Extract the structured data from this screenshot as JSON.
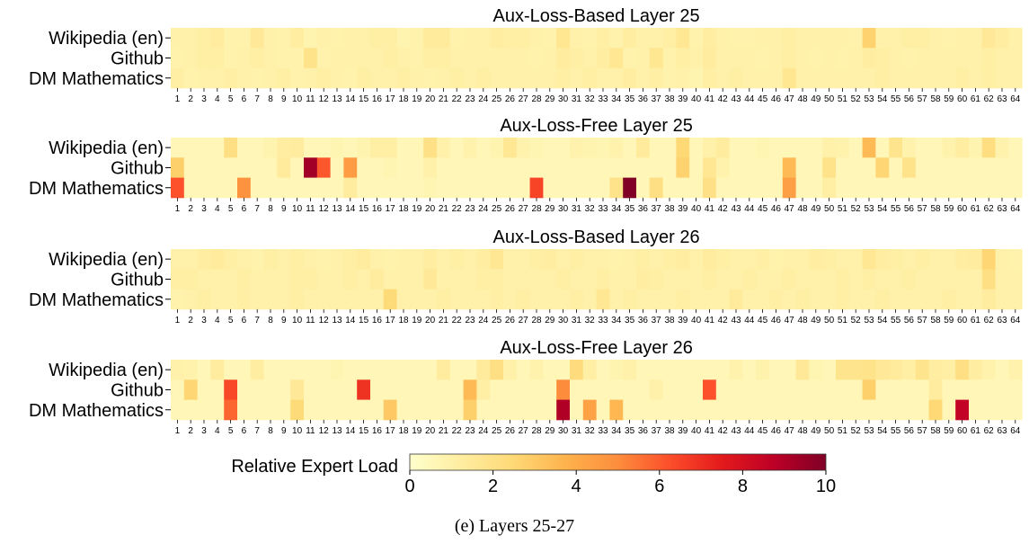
{
  "caption": "(e) Layers 25-27",
  "colors": {
    "scale": [
      "#ffffcc",
      "#ffeda0",
      "#fed976",
      "#feb24c",
      "#fd8d3c",
      "#fc4e2a",
      "#e31a1c",
      "#bd0026",
      "#800026"
    ]
  },
  "chart_data": {
    "type": "heatmap",
    "experts": [
      "1",
      "2",
      "3",
      "4",
      "5",
      "6",
      "7",
      "8",
      "9",
      "10",
      "11",
      "12",
      "13",
      "14",
      "15",
      "16",
      "17",
      "18",
      "19",
      "20",
      "21",
      "22",
      "23",
      "24",
      "25",
      "26",
      "27",
      "28",
      "29",
      "30",
      "31",
      "32",
      "33",
      "34",
      "35",
      "36",
      "37",
      "38",
      "39",
      "40",
      "41",
      "42",
      "43",
      "44",
      "45",
      "46",
      "47",
      "48",
      "49",
      "50",
      "51",
      "52",
      "53",
      "54",
      "55",
      "56",
      "57",
      "58",
      "59",
      "60",
      "61",
      "62",
      "63",
      "64"
    ],
    "datasets": [
      "Wikipedia (en)",
      "Github",
      "DM Mathematics"
    ],
    "colorbar": {
      "label": "Relative Expert Load",
      "min": 0,
      "max": 10,
      "ticks": [
        "0",
        "2",
        "4",
        "6",
        "8",
        "10"
      ]
    },
    "panels": [
      {
        "title": "Aux-Loss-Based Layer 25",
        "rows": [
          [
            1.0,
            1.0,
            1.1,
            1.3,
            0.9,
            0.9,
            1.5,
            1.0,
            0.9,
            1.2,
            0.8,
            1.0,
            0.9,
            1.0,
            1.0,
            1.1,
            1.1,
            0.8,
            0.9,
            1.4,
            1.4,
            0.9,
            1.0,
            1.0,
            1.2,
            1.1,
            1.1,
            1.0,
            0.9,
            1.7,
            1.0,
            0.9,
            1.1,
            0.9,
            1.2,
            1.0,
            1.0,
            1.1,
            1.6,
            0.9,
            1.2,
            1.0,
            0.9,
            0.9,
            1.0,
            1.0,
            1.1,
            1.0,
            1.0,
            1.0,
            1.0,
            0.9,
            2.7,
            1.0,
            1.0,
            1.1,
            1.1,
            1.0,
            0.9,
            1.0,
            1.0,
            1.5,
            1.2,
            1.0
          ],
          [
            0.9,
            1.0,
            1.1,
            1.1,
            0.9,
            1.0,
            1.1,
            1.0,
            0.9,
            0.9,
            1.9,
            0.9,
            1.0,
            1.0,
            1.0,
            1.0,
            1.1,
            1.0,
            0.9,
            1.1,
            1.1,
            1.0,
            1.0,
            1.0,
            1.0,
            1.0,
            1.0,
            0.9,
            1.0,
            1.3,
            1.1,
            1.0,
            1.2,
            1.6,
            0.9,
            1.0,
            1.7,
            0.9,
            1.1,
            1.0,
            1.3,
            1.0,
            1.0,
            1.0,
            0.9,
            1.0,
            1.1,
            1.0,
            0.9,
            1.0,
            0.9,
            1.0,
            1.2,
            1.1,
            1.0,
            0.9,
            1.0,
            1.0,
            1.0,
            1.0,
            1.0,
            1.1,
            1.0,
            1.0
          ],
          [
            1.1,
            0.9,
            1.0,
            1.0,
            1.1,
            1.0,
            0.9,
            1.0,
            1.1,
            0.9,
            1.0,
            1.1,
            1.0,
            0.9,
            1.1,
            1.0,
            1.0,
            1.1,
            1.0,
            0.9,
            1.0,
            1.1,
            1.0,
            1.1,
            1.0,
            1.0,
            1.0,
            1.0,
            1.0,
            1.1,
            1.0,
            1.1,
            1.0,
            1.0,
            1.2,
            1.0,
            1.1,
            0.9,
            1.0,
            0.8,
            1.1,
            1.0,
            1.1,
            1.0,
            1.0,
            1.0,
            1.7,
            1.0,
            1.0,
            1.0,
            1.0,
            1.0,
            1.0,
            1.1,
            1.0,
            1.0,
            1.0,
            1.0,
            1.0,
            1.1,
            1.0,
            1.1,
            1.0,
            1.0
          ]
        ]
      },
      {
        "title": "Aux-Loss-Free Layer 25",
        "rows": [
          [
            0.6,
            0.6,
            0.6,
            0.6,
            2.1,
            0.6,
            0.6,
            0.8,
            1.2,
            1.3,
            0.6,
            0.6,
            0.7,
            0.6,
            0.8,
            1.1,
            1.1,
            0.6,
            0.6,
            2.0,
            1.0,
            0.6,
            0.9,
            0.6,
            0.8,
            1.6,
            0.9,
            0.7,
            0.6,
            0.6,
            0.9,
            0.8,
            0.7,
            0.9,
            0.6,
            1.4,
            0.6,
            0.6,
            2.5,
            0.6,
            1.0,
            1.3,
            0.6,
            0.6,
            0.7,
            0.6,
            0.6,
            0.6,
            0.6,
            1.0,
            0.9,
            0.6,
            3.5,
            0.6,
            1.8,
            0.9,
            0.6,
            0.6,
            0.9,
            1.2,
            0.8,
            2.2,
            0.9,
            0.6
          ],
          [
            2.8,
            0.6,
            0.6,
            0.6,
            0.6,
            0.6,
            0.6,
            0.6,
            1.4,
            0.6,
            9.3,
            6.1,
            0.6,
            4.5,
            0.6,
            0.6,
            0.7,
            0.6,
            0.6,
            1.0,
            0.6,
            0.6,
            0.6,
            0.6,
            0.6,
            0.6,
            0.6,
            0.6,
            0.6,
            0.6,
            0.6,
            0.6,
            0.6,
            0.6,
            0.6,
            0.6,
            0.6,
            0.6,
            2.7,
            0.6,
            1.6,
            0.9,
            0.6,
            0.6,
            0.6,
            0.6,
            3.5,
            0.6,
            0.6,
            1.9,
            0.6,
            0.6,
            0.6,
            2.6,
            0.6,
            1.9,
            0.6,
            0.6,
            0.6,
            0.6,
            0.6,
            0.6,
            0.6,
            0.6
          ],
          [
            6.2,
            0.6,
            0.6,
            0.6,
            0.6,
            4.8,
            0.6,
            0.6,
            0.6,
            0.6,
            0.6,
            0.6,
            0.6,
            1.3,
            0.6,
            0.6,
            0.6,
            0.6,
            0.6,
            0.7,
            0.6,
            0.6,
            0.6,
            0.6,
            0.6,
            0.6,
            0.6,
            6.5,
            0.6,
            0.6,
            0.6,
            0.6,
            0.6,
            1.9,
            10.0,
            0.6,
            2.1,
            0.6,
            0.6,
            0.6,
            2.0,
            0.6,
            0.6,
            0.6,
            0.6,
            0.6,
            4.4,
            0.6,
            0.6,
            1.1,
            0.6,
            0.6,
            0.6,
            0.6,
            0.6,
            0.6,
            0.6,
            0.6,
            0.6,
            0.6,
            0.6,
            0.6,
            0.6,
            0.6
          ]
        ]
      },
      {
        "title": "Aux-Loss-Based Layer 26",
        "rows": [
          [
            1.0,
            1.0,
            1.2,
            1.4,
            1.1,
            1.0,
            0.9,
            1.1,
            1.0,
            1.1,
            1.0,
            0.9,
            1.0,
            1.1,
            1.3,
            1.0,
            0.9,
            1.0,
            1.0,
            1.2,
            1.0,
            1.1,
            1.0,
            1.2,
            1.6,
            1.0,
            1.0,
            1.1,
            1.2,
            1.0,
            1.1,
            1.0,
            1.0,
            0.9,
            1.0,
            1.1,
            1.0,
            1.1,
            1.2,
            1.0,
            1.3,
            1.1,
            1.0,
            1.0,
            1.1,
            0.9,
            1.0,
            1.0,
            1.2,
            1.1,
            1.0,
            1.0,
            1.6,
            1.2,
            1.1,
            1.0,
            1.1,
            1.0,
            1.0,
            1.2,
            1.3,
            2.6,
            1.0,
            0.9
          ],
          [
            1.1,
            1.1,
            1.0,
            1.0,
            1.0,
            1.1,
            1.0,
            1.0,
            1.0,
            1.1,
            1.1,
            1.0,
            1.0,
            1.1,
            1.0,
            1.3,
            1.0,
            1.0,
            1.0,
            1.5,
            1.0,
            1.0,
            1.0,
            1.1,
            1.1,
            1.0,
            1.0,
            1.0,
            1.0,
            1.1,
            1.0,
            1.0,
            1.1,
            1.0,
            1.0,
            1.2,
            1.1,
            1.0,
            1.0,
            1.0,
            1.1,
            1.0,
            1.0,
            1.1,
            1.0,
            1.0,
            1.1,
            1.0,
            1.0,
            1.0,
            1.1,
            1.0,
            1.1,
            1.0,
            1.0,
            1.1,
            1.0,
            1.0,
            1.0,
            1.0,
            1.0,
            2.1,
            1.0,
            1.0
          ],
          [
            0.9,
            1.0,
            1.1,
            1.0,
            1.0,
            1.1,
            1.0,
            1.0,
            1.0,
            1.1,
            1.0,
            1.0,
            1.0,
            1.0,
            1.0,
            1.0,
            2.4,
            1.0,
            1.0,
            1.0,
            1.1,
            1.0,
            1.0,
            1.0,
            1.1,
            1.0,
            1.1,
            1.0,
            1.0,
            1.0,
            1.1,
            1.0,
            1.6,
            1.0,
            1.1,
            1.0,
            1.0,
            1.0,
            1.1,
            1.0,
            1.0,
            1.0,
            1.4,
            1.0,
            1.0,
            1.1,
            1.0,
            1.1,
            1.0,
            1.0,
            1.1,
            1.0,
            1.0,
            1.1,
            1.0,
            1.0,
            1.0,
            1.0,
            1.1,
            1.0,
            1.0,
            1.3,
            1.0,
            1.0
          ]
        ]
      },
      {
        "title": "Aux-Loss-Free Layer 26",
        "rows": [
          [
            1.0,
            0.9,
            0.6,
            1.3,
            0.6,
            0.6,
            1.2,
            0.6,
            0.6,
            0.6,
            0.6,
            0.6,
            0.7,
            0.6,
            0.6,
            0.6,
            0.6,
            0.6,
            0.6,
            0.6,
            1.3,
            0.6,
            0.6,
            1.4,
            2.1,
            1.0,
            0.6,
            0.9,
            0.6,
            0.6,
            2.3,
            1.1,
            0.6,
            0.8,
            1.0,
            0.6,
            0.6,
            0.6,
            0.6,
            0.6,
            0.6,
            0.6,
            0.9,
            0.6,
            0.9,
            0.6,
            0.6,
            1.5,
            0.7,
            0.6,
            1.8,
            1.8,
            1.9,
            1.5,
            1.4,
            1.1,
            1.8,
            1.2,
            1.1,
            2.1,
            1.2,
            0.9,
            0.6,
            0.9
          ],
          [
            0.6,
            2.6,
            0.6,
            0.6,
            6.4,
            0.6,
            0.6,
            0.6,
            0.6,
            1.5,
            0.6,
            0.6,
            0.6,
            0.6,
            6.9,
            0.6,
            0.6,
            0.6,
            0.6,
            0.6,
            0.6,
            0.6,
            3.5,
            1.1,
            0.6,
            0.6,
            0.6,
            0.6,
            0.6,
            5.0,
            0.6,
            0.6,
            0.6,
            0.6,
            0.6,
            0.6,
            1.0,
            0.6,
            0.6,
            0.6,
            6.2,
            0.6,
            0.6,
            0.6,
            0.6,
            0.6,
            0.6,
            0.6,
            0.6,
            0.6,
            0.6,
            0.6,
            2.8,
            0.6,
            0.6,
            0.6,
            0.6,
            1.3,
            0.6,
            0.6,
            0.6,
            0.6,
            0.6,
            0.6
          ],
          [
            0.6,
            0.6,
            0.6,
            0.6,
            5.8,
            0.6,
            0.6,
            0.6,
            0.6,
            2.4,
            0.6,
            0.6,
            0.6,
            0.6,
            0.6,
            0.6,
            3.0,
            0.6,
            0.6,
            0.6,
            0.6,
            0.6,
            2.8,
            0.6,
            0.6,
            0.6,
            0.6,
            0.6,
            0.6,
            9.0,
            0.6,
            4.3,
            0.6,
            3.6,
            0.6,
            0.6,
            0.6,
            0.6,
            0.6,
            0.6,
            0.6,
            0.6,
            0.6,
            0.6,
            0.6,
            0.6,
            0.6,
            0.6,
            0.6,
            0.6,
            0.6,
            0.6,
            0.6,
            0.6,
            0.6,
            0.6,
            0.6,
            2.5,
            0.6,
            8.6,
            0.6,
            0.6,
            0.6,
            0.6
          ]
        ]
      }
    ]
  }
}
